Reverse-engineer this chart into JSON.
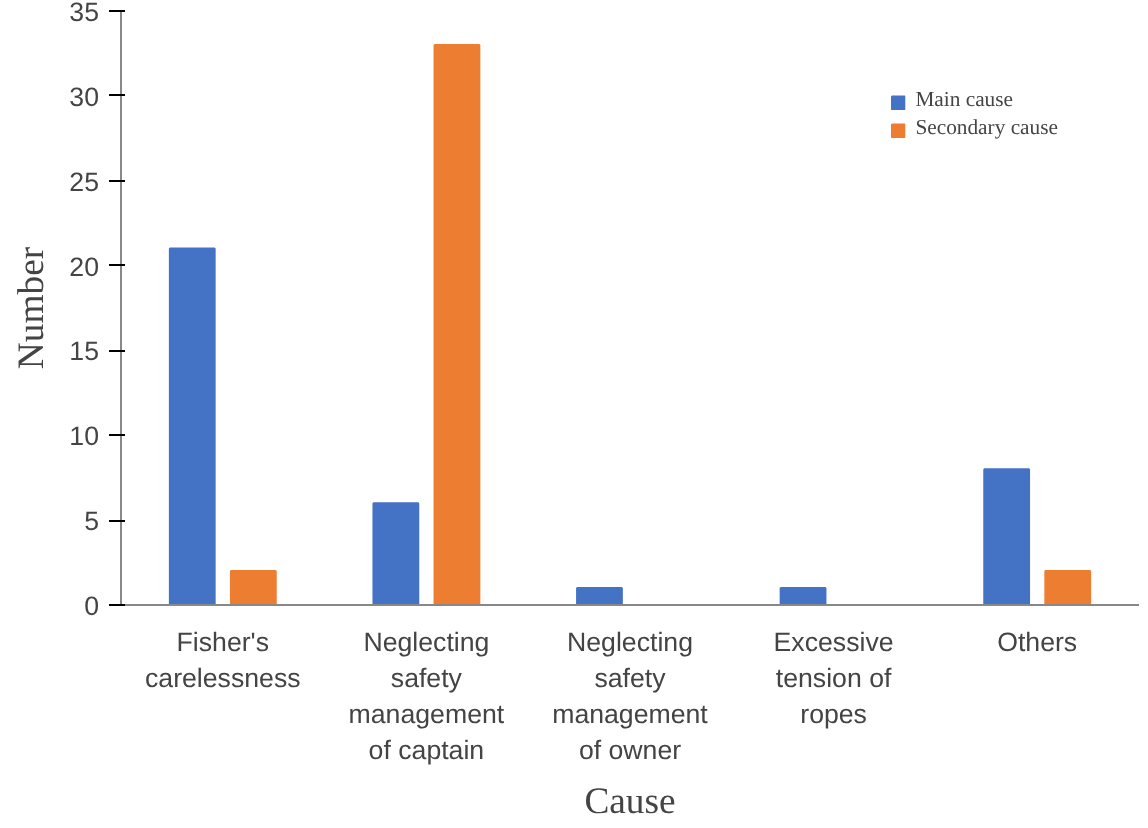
{
  "chart_data": {
    "type": "bar",
    "xlabel": "Cause",
    "ylabel": "Number",
    "categories": [
      "Fisher's\ncarelessness",
      "Neglecting\nsafety\nmanagement\nof captain",
      "Neglecting\nsafety\nmanagement\nof owner",
      "Excessive\ntension of\nropes",
      "Others"
    ],
    "series": [
      {
        "name": "Main cause",
        "color": "#4472c4",
        "values": [
          21,
          6,
          1,
          1,
          8
        ]
      },
      {
        "name": "Secondary cause",
        "color": "#ed7d31",
        "values": [
          2,
          33,
          null,
          null,
          2
        ]
      }
    ],
    "ylim": [
      0,
      35
    ],
    "yticks": [
      0,
      5,
      10,
      15,
      20,
      25,
      30,
      35
    ],
    "grid": false,
    "legend": "top right"
  }
}
